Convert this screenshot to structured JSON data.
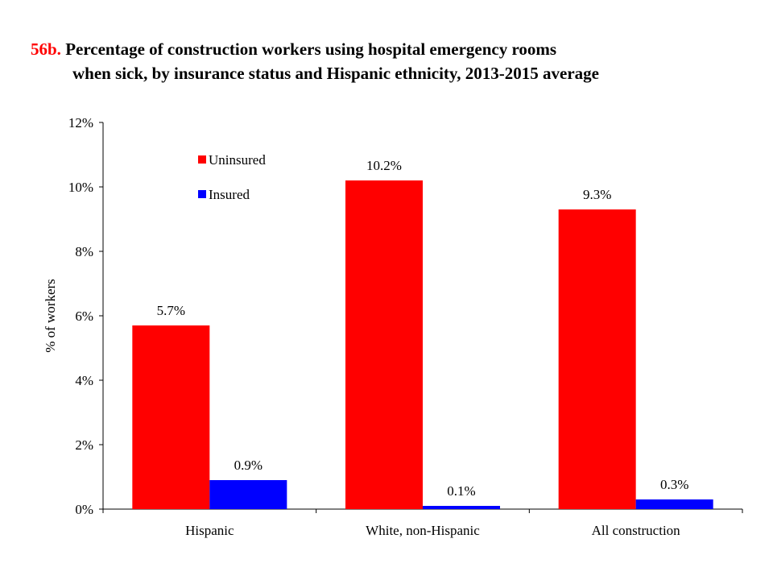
{
  "figure_number": "56b.",
  "title_line1": "Percentage of construction workers using hospital emergency rooms",
  "title_line2": "when sick, by insurance status and Hispanic ethnicity, 2013-2015 average",
  "colors": {
    "uninsured": "#ff0000",
    "insured": "#0000ff",
    "figure_number": "#ff0000"
  },
  "chart_data": {
    "type": "bar",
    "title": "Percentage of construction workers using hospital emergency rooms when sick, by insurance status and Hispanic ethnicity, 2013-2015 average",
    "ylabel": "% of workers",
    "xlabel": "",
    "ylim": [
      0,
      12
    ],
    "yticks": [
      "0%",
      "2%",
      "4%",
      "6%",
      "8%",
      "10%",
      "12%"
    ],
    "categories": [
      "Hispanic",
      "White, non-Hispanic",
      "All construction"
    ],
    "series": [
      {
        "name": "Uninsured",
        "values": [
          5.7,
          10.2,
          9.3
        ],
        "labels": [
          "5.7%",
          "10.2%",
          "9.3%"
        ]
      },
      {
        "name": "Insured",
        "values": [
          0.9,
          0.1,
          0.3
        ],
        "labels": [
          "0.9%",
          "0.1%",
          "0.3%"
        ]
      }
    ],
    "legend": "top-left",
    "grid": false
  }
}
